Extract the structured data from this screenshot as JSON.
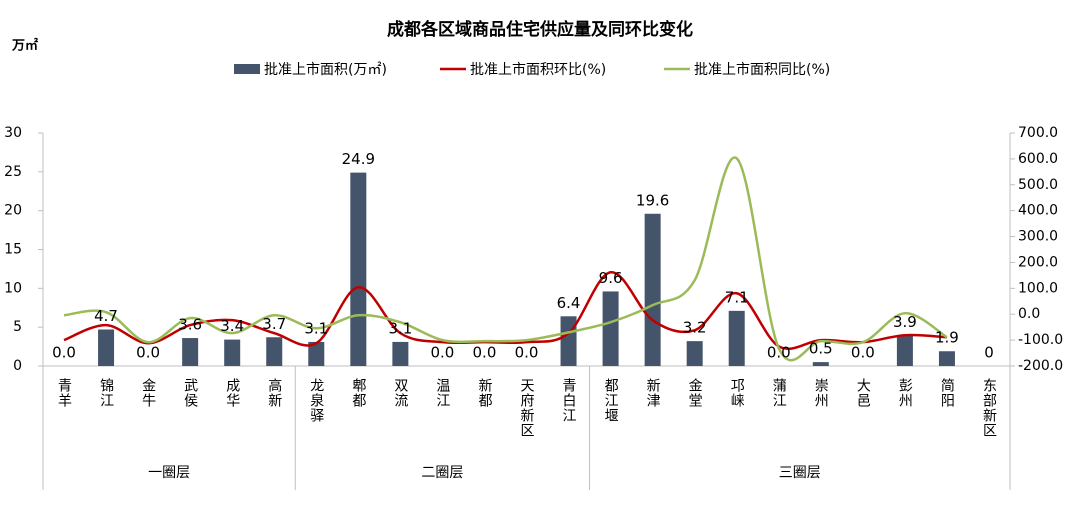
{
  "chart_data": {
    "type": "bar-line",
    "title": "成都各区域商品住宅供应量及同环比变化",
    "y_label": "万㎡",
    "groups": [
      {
        "label": "一圈层",
        "categories": [
          "青羊",
          "锦江",
          "金牛",
          "武侯",
          "成华",
          "高新"
        ]
      },
      {
        "label": "二圈层",
        "categories": [
          "龙泉驿",
          "郫都",
          "双流",
          "温江",
          "新都",
          "天府新区",
          "青白江"
        ]
      },
      {
        "label": "三圈层",
        "categories": [
          "都江堰",
          "新津",
          "金堂",
          "邛崃",
          "蒲江",
          "崇州",
          "大邑",
          "彭州",
          "简阳",
          "东部新区"
        ]
      }
    ],
    "series": [
      {
        "name": "批准上市面积(万㎡)",
        "type": "bar",
        "color": "#44546a",
        "values": [
          0,
          4.7,
          0,
          3.6,
          3.4,
          3.7,
          3.1,
          24.9,
          3.1,
          0,
          0,
          0,
          6.4,
          9.6,
          19.6,
          3.2,
          7.1,
          0,
          0.5,
          0,
          3.9,
          1.9,
          0
        ],
        "value_labels": [
          "0.0",
          "4.7",
          "0.0",
          "3.6",
          "3.4",
          "3.7",
          "3.1",
          "24.9",
          "3.1",
          "0.0",
          "0.0",
          "0.0",
          "6.4",
          "9.6",
          "19.6",
          "3.2",
          "7.1",
          "0.0",
          "0.5",
          "0.0",
          "3.9",
          "1.9",
          "0"
        ]
      },
      {
        "name": "批准上市面积环比(%)",
        "type": "line",
        "axis": "y2",
        "color": "#c00000",
        "values": [
          -100,
          -42,
          -112,
          -42,
          -23,
          -73,
          -112,
          104,
          -73,
          -108,
          -108,
          -108,
          -73,
          162,
          -23,
          -62,
          81,
          -124,
          -100,
          -108,
          -81,
          -89,
          null
        ]
      },
      {
        "name": "批准上市面积同比(%)",
        "type": "line",
        "axis": "y2",
        "color": "#9bbb59",
        "values": [
          -4,
          8,
          -108,
          -15,
          -73,
          -4,
          -54,
          -4,
          -31,
          -100,
          -104,
          -100,
          -70,
          -31,
          35,
          131,
          602,
          -131,
          -104,
          -108,
          4,
          -89,
          null
        ]
      }
    ],
    "ylim": [
      0,
      30
    ],
    "yticks": [
      0,
      5,
      10,
      15,
      20,
      25,
      30
    ],
    "y2lim": [
      -200,
      700
    ],
    "y2ticks": [
      {
        "value": -200,
        "label": "-200.0"
      },
      {
        "value": -100,
        "label": "-100.0"
      },
      {
        "value": 0,
        "label": "0.0"
      },
      {
        "value": 100,
        "label": "100.0"
      },
      {
        "value": 200,
        "label": "200.0"
      },
      {
        "value": 300,
        "label": "300.0"
      },
      {
        "value": 400,
        "label": "400.0"
      },
      {
        "value": 500,
        "label": "500.0"
      },
      {
        "value": 600,
        "label": "600.0"
      },
      {
        "value": 700,
        "label": "700.0"
      }
    ]
  }
}
